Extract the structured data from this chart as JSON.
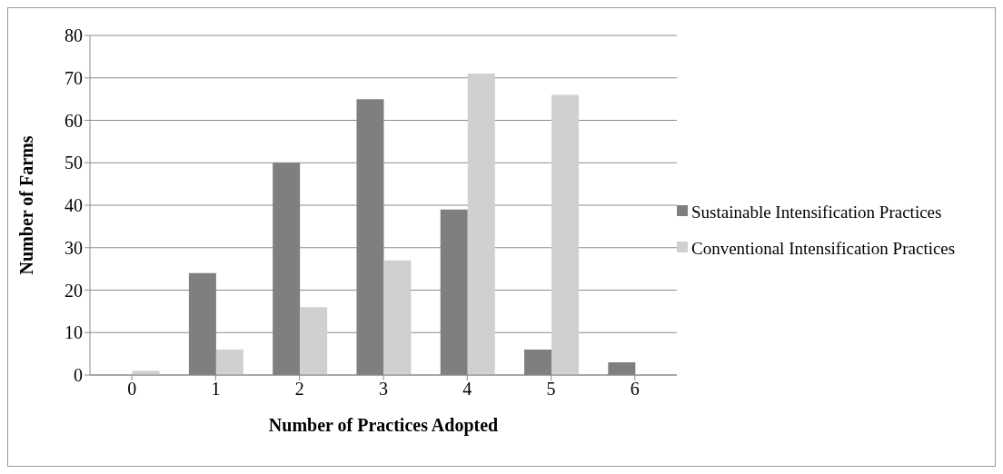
{
  "chart_data": {
    "type": "bar",
    "xlabel": "Number of Practices Adopted",
    "ylabel": "Number of Farms",
    "categories": [
      "0",
      "1",
      "2",
      "3",
      "4",
      "5",
      "6"
    ],
    "series": [
      {
        "name": "Sustainable Intensification Practices",
        "color": "#7f7f7f",
        "values": [
          0,
          24,
          50,
          65,
          39,
          6,
          3
        ]
      },
      {
        "name": "Conventional Intensification Practices",
        "color": "#d0d0d0",
        "values": [
          1,
          6,
          16,
          27,
          71,
          66,
          0
        ]
      }
    ],
    "ylim": [
      0,
      80
    ],
    "yticks": [
      0,
      10,
      20,
      30,
      40,
      50,
      60,
      70,
      80
    ],
    "grid": "y",
    "legend": "right"
  }
}
